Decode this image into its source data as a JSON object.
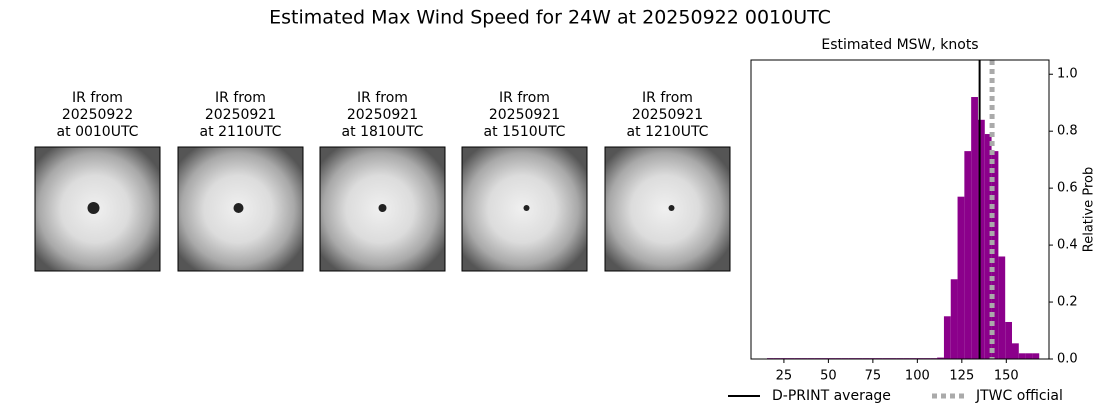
{
  "title": "Estimated Max Wind Speed for 24W at 20250922 0010UTC",
  "panels": [
    {
      "lines": [
        "IR from",
        "20250922",
        "at 0010UTC"
      ]
    },
    {
      "lines": [
        "IR from",
        "20250921",
        "at 2110UTC"
      ]
    },
    {
      "lines": [
        "IR from",
        "20250921",
        "at 1810UTC"
      ]
    },
    {
      "lines": [
        "IR from",
        "20250921",
        "at 1510UTC"
      ]
    },
    {
      "lines": [
        "IR from",
        "20250921",
        "at 1210UTC"
      ]
    }
  ],
  "chart_data": {
    "type": "histogram",
    "title": "Estimated MSW, knots",
    "ylabel": "Relative Prob",
    "color": "#8b008b",
    "bins": [
      15.5,
      19.325,
      23.15,
      26.975,
      30.8,
      34.625,
      38.45,
      42.275,
      46.1,
      49.925,
      53.75,
      57.575,
      61.4,
      65.225,
      69.05,
      72.875,
      76.7,
      80.525,
      84.35,
      88.175,
      92.0,
      95.825,
      99.65,
      103.475,
      107.3,
      111.125,
      114.95,
      118.775,
      122.6,
      126.425,
      130.25,
      134.075,
      137.9,
      141.725,
      145.55,
      149.375,
      153.2,
      157.025,
      160.85,
      164.675,
      168.5
    ],
    "values": [
      0.003,
      0.003,
      0.003,
      0.003,
      0.003,
      0.003,
      0.003,
      0.003,
      0.003,
      0.003,
      0.003,
      0.003,
      0.003,
      0.003,
      0.003,
      0.003,
      0.003,
      0.003,
      0.003,
      0.003,
      0.003,
      0.003,
      0.003,
      0.003,
      0.003,
      0.005,
      0.15,
      0.28,
      0.57,
      0.73,
      0.92,
      0.84,
      0.79,
      0.73,
      0.36,
      0.13,
      0.055,
      0.02,
      0.02,
      0.02
    ],
    "xlim": [
      6.5,
      174
    ],
    "ylim": [
      0,
      1.05
    ],
    "xticks": [
      25,
      50,
      75,
      100,
      125,
      150
    ],
    "yticks": [
      {
        "value": 0,
        "label": "0.0"
      },
      {
        "value": 0.2,
        "label": "0.2"
      },
      {
        "value": 0.4,
        "label": "0.4"
      },
      {
        "value": 0.6,
        "label": "0.6"
      },
      {
        "value": 0.8,
        "label": "0.8"
      },
      {
        "value": 1,
        "label": "1.0"
      }
    ],
    "reference_lines": [
      {
        "name": "D-PRINT average",
        "value": 135,
        "color": "#000000",
        "style": "solid"
      },
      {
        "name": "JTWC official",
        "value": 142,
        "color": "#aaaaaa",
        "style": "dotted"
      }
    ]
  }
}
